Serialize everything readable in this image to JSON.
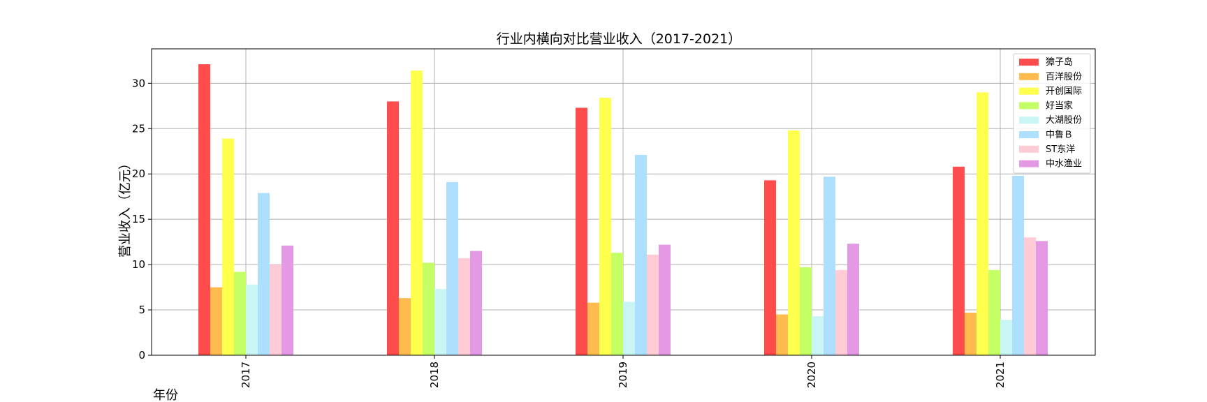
{
  "chart_data": {
    "type": "bar",
    "title": "行业内横向对比营业收入（2017-2021）",
    "xlabel": "年份",
    "ylabel": "营业收入（亿元）",
    "categories": [
      "2017",
      "2018",
      "2019",
      "2020",
      "2021"
    ],
    "ylim": [
      0,
      33.8
    ],
    "yticks": [
      0,
      5,
      10,
      15,
      20,
      25,
      30
    ],
    "grid": true,
    "legend_position": "top-right",
    "series": [
      {
        "name": "獐子岛",
        "color": "#ff4d4d",
        "values": [
          32.1,
          28.0,
          27.3,
          19.3,
          20.8
        ]
      },
      {
        "name": "百洋股份",
        "color": "#ffbb4d",
        "values": [
          7.5,
          6.3,
          5.8,
          4.5,
          4.7
        ]
      },
      {
        "name": "开创国际",
        "color": "#ffff4d",
        "values": [
          23.9,
          31.4,
          28.4,
          24.8,
          29.0
        ]
      },
      {
        "name": "好当家",
        "color": "#c4ff66",
        "values": [
          9.2,
          10.2,
          11.3,
          9.7,
          9.4
        ]
      },
      {
        "name": "大湖股份",
        "color": "#c9f5f5",
        "values": [
          7.8,
          7.3,
          5.9,
          4.3,
          3.9
        ]
      },
      {
        "name": "中鲁Ｂ",
        "color": "#addfff",
        "values": [
          17.9,
          19.1,
          22.1,
          19.7,
          19.8
        ]
      },
      {
        "name": "ST东洋",
        "color": "#ffccd5",
        "values": [
          10.0,
          10.7,
          11.1,
          9.4,
          13.0
        ]
      },
      {
        "name": "中水渔业",
        "color": "#e399e3",
        "values": [
          12.1,
          11.5,
          12.2,
          12.3,
          12.6
        ]
      }
    ]
  }
}
